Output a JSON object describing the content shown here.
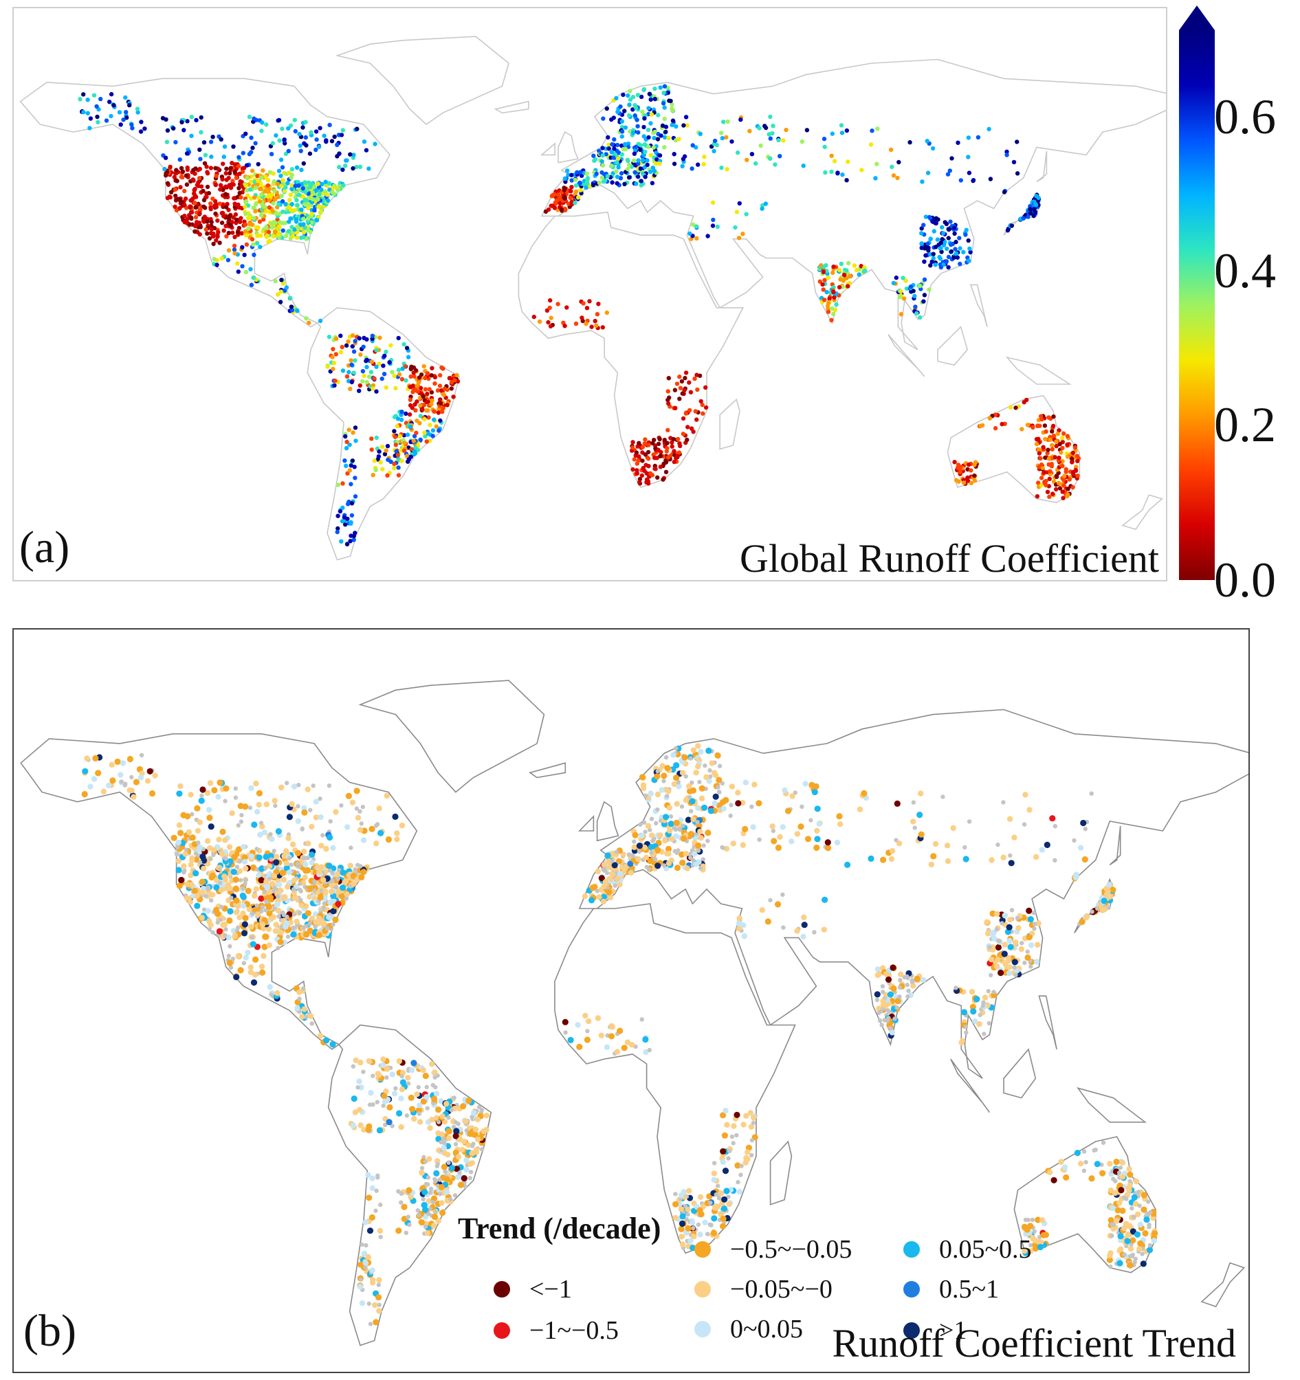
{
  "panel_a": {
    "letter": "(a)",
    "title": "Global Runoff Coefficient",
    "colorbar": {
      "ticks": [
        "0.6",
        "0.4",
        "0.2",
        "0.0"
      ],
      "tick_values": [
        0.6,
        0.4,
        0.2,
        0.0
      ],
      "min": 0.0,
      "max": 0.7,
      "extend": "max",
      "colors": [
        "#7f0000",
        "#d60000",
        "#ff4000",
        "#ff9a00",
        "#f5e800",
        "#9ef25f",
        "#2ee6c0",
        "#00b4ff",
        "#0055ff",
        "#0000b5",
        "#00007f"
      ]
    }
  },
  "panel_b": {
    "letter": "(b)",
    "title": "Runoff Coefficient Trend",
    "legend": {
      "title": "Trend (/decade)",
      "items": [
        {
          "label": "<−1",
          "color": "#6b0000"
        },
        {
          "label": "−1~−0.5",
          "color": "#e8151b"
        },
        {
          "label": "−0.5~−0.05",
          "color": "#f5a623"
        },
        {
          "label": "−0.05~−0",
          "color": "#fbcf86"
        },
        {
          "label": "0~0.05",
          "color": "#c6e6f7"
        },
        {
          "label": "0.05~0.5",
          "color": "#19b8ee"
        },
        {
          "label": "0.5~1",
          "color": "#1e7fe0"
        },
        {
          "label": ">1",
          "color": "#0b2a6f"
        }
      ],
      "no_trend_color": "#c4c4c4"
    }
  },
  "map_style": {
    "panel_a_border_color": "#cccccc",
    "panel_b_border_color": "#888888"
  }
}
